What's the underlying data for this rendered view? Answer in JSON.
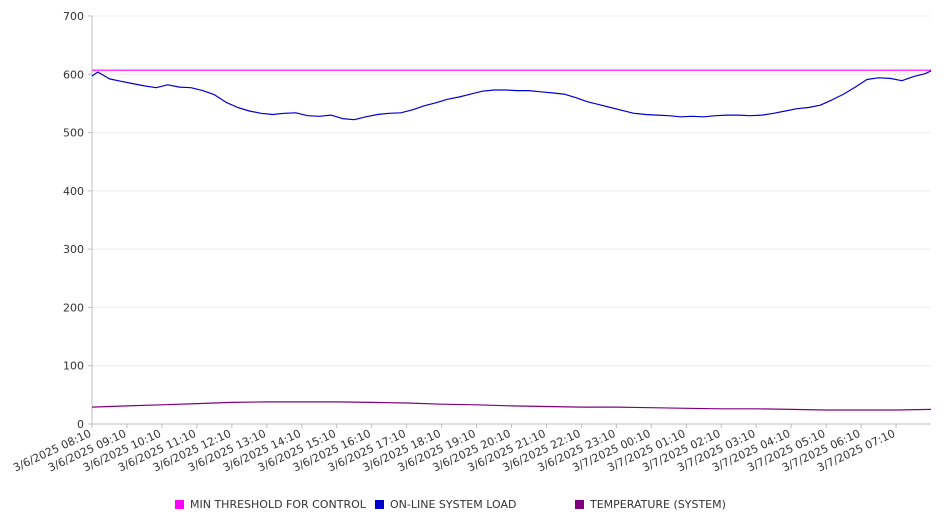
{
  "chart_data": {
    "type": "line",
    "title": "",
    "xlabel": "",
    "ylabel": "",
    "ylim": [
      0,
      700
    ],
    "y_ticks": [
      0,
      100,
      200,
      300,
      400,
      500,
      600,
      700
    ],
    "grid": true,
    "legend_position": "bottom",
    "x_tick_labels": [
      "3/6/2025 08:10",
      "3/6/2025 09:10",
      "3/6/2025 10:10",
      "3/6/2025 11:10",
      "3/6/2025 12:10",
      "3/6/2025 13:10",
      "3/6/2025 14:10",
      "3/6/2025 15:10",
      "3/6/2025 16:10",
      "3/6/2025 17:10",
      "3/6/2025 18:10",
      "3/6/2025 19:10",
      "3/6/2025 20:10",
      "3/6/2025 21:10",
      "3/6/2025 22:10",
      "3/6/2025 23:10",
      "3/7/2025 00:10",
      "3/7/2025 01:10",
      "3/7/2025 02:10",
      "3/7/2025 03:10",
      "3/7/2025 04:10",
      "3/7/2025 05:10",
      "3/7/2025 06:10",
      "3/7/2025 07:10"
    ],
    "x_range": [
      "3/6/2025 08:10",
      "3/7/2025 08:10"
    ],
    "series": [
      {
        "name": "MIN THRESHOLD FOR CONTROL",
        "color": "#ff00ff",
        "points": [
          [
            "3/6/2025 08:10",
            607
          ],
          [
            "3/7/2025 08:10",
            607
          ]
        ]
      },
      {
        "name": "ON-LINE SYSTEM LOAD",
        "color": "#0000cc",
        "points": [
          [
            "3/6/2025 08:10",
            597
          ],
          [
            "3/6/2025 08:20",
            604
          ],
          [
            "3/6/2025 08:40",
            592
          ],
          [
            "3/6/2025 09:00",
            588
          ],
          [
            "3/6/2025 09:20",
            584
          ],
          [
            "3/6/2025 09:40",
            580
          ],
          [
            "3/6/2025 10:00",
            577
          ],
          [
            "3/6/2025 10:20",
            582
          ],
          [
            "3/6/2025 10:40",
            578
          ],
          [
            "3/6/2025 11:00",
            577
          ],
          [
            "3/6/2025 11:20",
            572
          ],
          [
            "3/6/2025 11:40",
            565
          ],
          [
            "3/6/2025 12:00",
            552
          ],
          [
            "3/6/2025 12:20",
            543
          ],
          [
            "3/6/2025 12:40",
            537
          ],
          [
            "3/6/2025 13:00",
            533
          ],
          [
            "3/6/2025 13:20",
            531
          ],
          [
            "3/6/2025 13:40",
            533
          ],
          [
            "3/6/2025 14:00",
            534
          ],
          [
            "3/6/2025 14:20",
            529
          ],
          [
            "3/6/2025 14:40",
            528
          ],
          [
            "3/6/2025 15:00",
            530
          ],
          [
            "3/6/2025 15:20",
            524
          ],
          [
            "3/6/2025 15:40",
            522
          ],
          [
            "3/6/2025 16:00",
            527
          ],
          [
            "3/6/2025 16:20",
            531
          ],
          [
            "3/6/2025 16:40",
            533
          ],
          [
            "3/6/2025 17:00",
            534
          ],
          [
            "3/6/2025 17:20",
            539
          ],
          [
            "3/6/2025 17:40",
            546
          ],
          [
            "3/6/2025 18:00",
            551
          ],
          [
            "3/6/2025 18:20",
            557
          ],
          [
            "3/6/2025 18:40",
            561
          ],
          [
            "3/6/2025 19:00",
            566
          ],
          [
            "3/6/2025 19:20",
            571
          ],
          [
            "3/6/2025 19:40",
            573
          ],
          [
            "3/6/2025 20:00",
            573
          ],
          [
            "3/6/2025 20:20",
            572
          ],
          [
            "3/6/2025 20:40",
            572
          ],
          [
            "3/6/2025 21:00",
            570
          ],
          [
            "3/6/2025 21:20",
            568
          ],
          [
            "3/6/2025 21:40",
            566
          ],
          [
            "3/6/2025 22:00",
            560
          ],
          [
            "3/6/2025 22:20",
            553
          ],
          [
            "3/6/2025 22:40",
            548
          ],
          [
            "3/6/2025 23:00",
            543
          ],
          [
            "3/6/2025 23:20",
            538
          ],
          [
            "3/6/2025 23:40",
            533
          ],
          [
            "3/7/2025 00:00",
            531
          ],
          [
            "3/7/2025 00:20",
            530
          ],
          [
            "3/7/2025 00:40",
            529
          ],
          [
            "3/7/2025 01:00",
            527
          ],
          [
            "3/7/2025 01:20",
            528
          ],
          [
            "3/7/2025 01:40",
            527
          ],
          [
            "3/7/2025 02:00",
            529
          ],
          [
            "3/7/2025 02:20",
            530
          ],
          [
            "3/7/2025 02:40",
            530
          ],
          [
            "3/7/2025 03:00",
            529
          ],
          [
            "3/7/2025 03:20",
            530
          ],
          [
            "3/7/2025 03:40",
            533
          ],
          [
            "3/7/2025 04:00",
            537
          ],
          [
            "3/7/2025 04:20",
            541
          ],
          [
            "3/7/2025 04:40",
            543
          ],
          [
            "3/7/2025 05:00",
            547
          ],
          [
            "3/7/2025 05:20",
            556
          ],
          [
            "3/7/2025 05:40",
            566
          ],
          [
            "3/7/2025 06:00",
            578
          ],
          [
            "3/7/2025 06:20",
            591
          ],
          [
            "3/7/2025 06:40",
            594
          ],
          [
            "3/7/2025 07:00",
            593
          ],
          [
            "3/7/2025 07:20",
            589
          ],
          [
            "3/7/2025 07:40",
            596
          ],
          [
            "3/7/2025 08:00",
            601
          ],
          [
            "3/7/2025 08:10",
            606
          ]
        ]
      },
      {
        "name": "TEMPERATURE (SYSTEM)",
        "color": "#800080",
        "points": [
          [
            "3/6/2025 08:10",
            29
          ],
          [
            "3/6/2025 09:10",
            31
          ],
          [
            "3/6/2025 10:10",
            33
          ],
          [
            "3/6/2025 11:10",
            35
          ],
          [
            "3/6/2025 12:10",
            37
          ],
          [
            "3/6/2025 13:10",
            38
          ],
          [
            "3/6/2025 14:10",
            38
          ],
          [
            "3/6/2025 15:10",
            38
          ],
          [
            "3/6/2025 16:10",
            37
          ],
          [
            "3/6/2025 17:10",
            36
          ],
          [
            "3/6/2025 18:10",
            34
          ],
          [
            "3/6/2025 19:10",
            33
          ],
          [
            "3/6/2025 20:10",
            31
          ],
          [
            "3/6/2025 21:10",
            30
          ],
          [
            "3/6/2025 22:10",
            29
          ],
          [
            "3/6/2025 23:10",
            29
          ],
          [
            "3/7/2025 00:10",
            28
          ],
          [
            "3/7/2025 01:10",
            27
          ],
          [
            "3/7/2025 02:10",
            26
          ],
          [
            "3/7/2025 03:10",
            26
          ],
          [
            "3/7/2025 04:10",
            25
          ],
          [
            "3/7/2025 05:10",
            24
          ],
          [
            "3/7/2025 06:10",
            24
          ],
          [
            "3/7/2025 07:10",
            24
          ],
          [
            "3/7/2025 08:10",
            25
          ]
        ]
      }
    ]
  }
}
